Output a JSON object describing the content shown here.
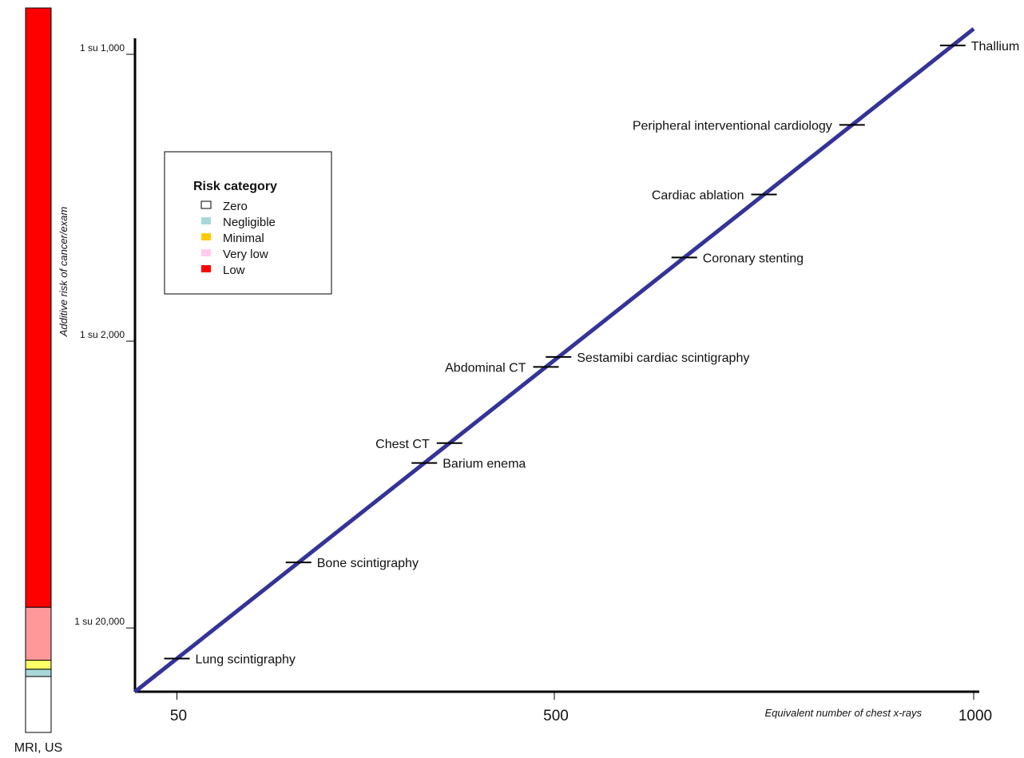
{
  "chart_data": {
    "type": "line",
    "ylabel": "Additive risk of cancer/exam",
    "xlabel": "Equivalent number of chest x-rays",
    "x_ticks": [
      {
        "value": 50,
        "label": "50"
      },
      {
        "value": 500,
        "label": "500"
      },
      {
        "value": 1000,
        "label": "1000"
      }
    ],
    "y_ticks": [
      {
        "value": 0.1,
        "label": "1 su 20,000"
      },
      {
        "value": 0.55,
        "label": "1 su 2,000"
      },
      {
        "value": 1.0,
        "label": "1 su 1,000"
      }
    ],
    "line": {
      "color": "#333399",
      "x": [
        0,
        1000
      ],
      "y": [
        0,
        1.04
      ]
    },
    "annotations": [
      {
        "label": "Lung scintigraphy",
        "x": 50,
        "side": "right"
      },
      {
        "label": "Bone scintigraphy",
        "x": 195,
        "side": "right"
      },
      {
        "label": "Barium enema",
        "x": 345,
        "side": "right"
      },
      {
        "label": "Chest CT",
        "x": 375,
        "side": "left"
      },
      {
        "label": "Abdominal CT",
        "x": 490,
        "side": "left"
      },
      {
        "label": "Sestamibi cardiac scintigraphy",
        "x": 505,
        "side": "right"
      },
      {
        "label": "Coronary stenting",
        "x": 655,
        "side": "right"
      },
      {
        "label": "Cardiac ablation",
        "x": 750,
        "side": "left"
      },
      {
        "label": "Peripheral interventional cardiology",
        "x": 855,
        "side": "left"
      },
      {
        "label": "Thallium",
        "x": 975,
        "side": "right"
      }
    ],
    "legend": {
      "title": "Risk category",
      "position": "top-left",
      "items": [
        {
          "label": "Zero",
          "color": "#ffffff"
        },
        {
          "label": "Negligible",
          "color": "#aad8d8"
        },
        {
          "label": "Minimal",
          "color": "#ffcc00"
        },
        {
          "label": "Very low",
          "color": "#ffccf0"
        },
        {
          "label": "Low",
          "color": "#ff0000"
        }
      ]
    },
    "risk_bar": {
      "caption": "MRI, US",
      "segments": [
        {
          "category": "Zero",
          "color": "#ffffff",
          "fraction": 0.0772
        },
        {
          "category": "Negligible",
          "color": "#aad8d8",
          "fraction": 0.0101
        },
        {
          "category": "Minimal",
          "color": "#ffff66",
          "fraction": 0.0124
        },
        {
          "category": "Very low",
          "color": "#ff9999",
          "fraction": 0.0732
        },
        {
          "category": "Low",
          "color": "#ff0000",
          "fraction": 0.8271
        }
      ]
    }
  }
}
